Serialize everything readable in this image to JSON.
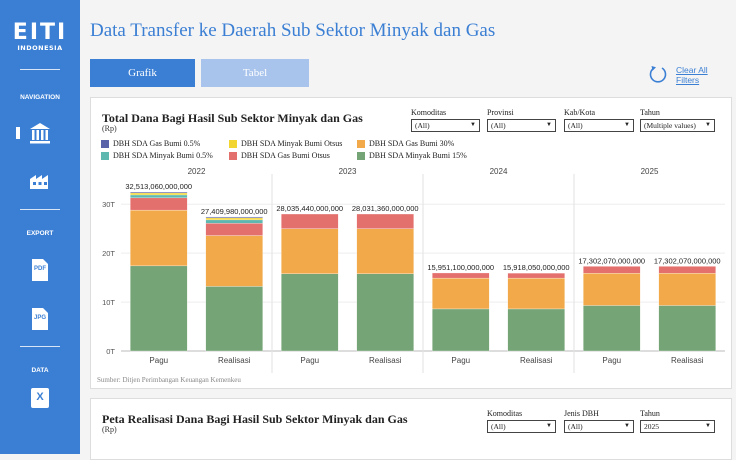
{
  "sidebar": {
    "logo_main": "EITI",
    "logo_sub": "INDONESIA",
    "navigation_label": "NAVIGATION",
    "export_label": "EXPORT",
    "data_label": "DATA",
    "icons": [
      "bank-icon",
      "factory-icon",
      "pdf-icon",
      "jpg-icon",
      "excel-icon"
    ],
    "pdf_text": "PDF",
    "jpg_text": "JPG",
    "excel_text": "X"
  },
  "header": {
    "title": "Data Transfer ke Daerah Sub Sektor Minyak dan Gas"
  },
  "tabs": {
    "grafik": "Grafik",
    "tabel": "Tabel"
  },
  "clear_filters": {
    "line1": "Clear All",
    "line2": "Filters"
  },
  "panel1": {
    "title": "Total Dana Bagi Hasil Sub Sektor Minyak dan Gas",
    "unit": "(Rp)",
    "filters": [
      {
        "label": "Komoditas",
        "value": "(All)"
      },
      {
        "label": "Provinsi",
        "value": "(All)"
      },
      {
        "label": "Kab/Kota",
        "value": "(All)"
      },
      {
        "label": "Tahun",
        "value": "(Multiple values)"
      }
    ],
    "source": "Sumber: Ditjen Perimbangan Keuangan Kemenkeu"
  },
  "panel2": {
    "title": "Peta Realisasi Dana Bagi Hasil Sub Sektor Minyak dan Gas",
    "unit": "(Rp)",
    "filters": [
      {
        "label": "Komoditas",
        "value": "(All)"
      },
      {
        "label": "Jenis DBH",
        "value": "(All)"
      },
      {
        "label": "Tahun",
        "value": "2025"
      }
    ]
  },
  "chart_data": {
    "type": "bar",
    "stacked": true,
    "years": [
      "2022",
      "2023",
      "2024",
      "2025"
    ],
    "categories": [
      "Pagu",
      "Realisasi"
    ],
    "y_ticks": [
      "0T",
      "10T",
      "20T",
      "30T"
    ],
    "ylim": [
      0,
      35
    ],
    "legend": [
      {
        "name": "DBH SDA Gas Bumi 0.5%",
        "color": "#5b63a8"
      },
      {
        "name": "DBH SDA Minyak Bumi Otsus",
        "color": "#f2d531"
      },
      {
        "name": "DBH SDA Gas Bumi 30%",
        "color": "#f2a94a"
      },
      {
        "name": "DBH SDA Minyak Bumi 0.5%",
        "color": "#5fb8b0"
      },
      {
        "name": "DBH SDA Gas Bumi Otsus",
        "color": "#e4706e"
      },
      {
        "name": "DBH SDA Minyak Bumi 15%",
        "color": "#75a577"
      }
    ],
    "series_order": [
      "DBH SDA Minyak Bumi 15%",
      "DBH SDA Gas Bumi 30%",
      "DBH SDA Gas Bumi Otsus",
      "DBH SDA Minyak Bumi 0.5%",
      "DBH SDA Minyak Bumi Otsus",
      "DBH SDA Gas Bumi 0.5%"
    ],
    "bars": [
      {
        "year": "2022",
        "category": "Pagu",
        "total_label": "32,513,060,000,000",
        "segments": [
          17.4,
          11.4,
          2.5,
          0.6,
          0.4,
          0.2
        ]
      },
      {
        "year": "2022",
        "category": "Realisasi",
        "total_label": "27,409,980,000,000",
        "segments": [
          13.2,
          10.4,
          2.5,
          0.7,
          0.4,
          0.2
        ]
      },
      {
        "year": "2023",
        "category": "Pagu",
        "total_label": "28,035,440,000,000",
        "segments": [
          15.8,
          9.2,
          3.0,
          0,
          0,
          0
        ]
      },
      {
        "year": "2023",
        "category": "Realisasi",
        "total_label": "28,031,360,000,000",
        "segments": [
          15.8,
          9.2,
          3.0,
          0,
          0,
          0
        ]
      },
      {
        "year": "2024",
        "category": "Pagu",
        "total_label": "15,951,100,000,000",
        "segments": [
          8.6,
          6.3,
          1.05,
          0,
          0,
          0
        ]
      },
      {
        "year": "2024",
        "category": "Realisasi",
        "total_label": "15,918,050,000,000",
        "segments": [
          8.6,
          6.3,
          1.02,
          0,
          0,
          0
        ]
      },
      {
        "year": "2025",
        "category": "Pagu",
        "total_label": "17,302,070,000,000",
        "segments": [
          9.3,
          6.6,
          1.4,
          0,
          0,
          0
        ]
      },
      {
        "year": "2025",
        "category": "Realisasi",
        "total_label": "17,302,070,000,000",
        "segments": [
          9.3,
          6.6,
          1.4,
          0,
          0,
          0
        ]
      }
    ]
  }
}
